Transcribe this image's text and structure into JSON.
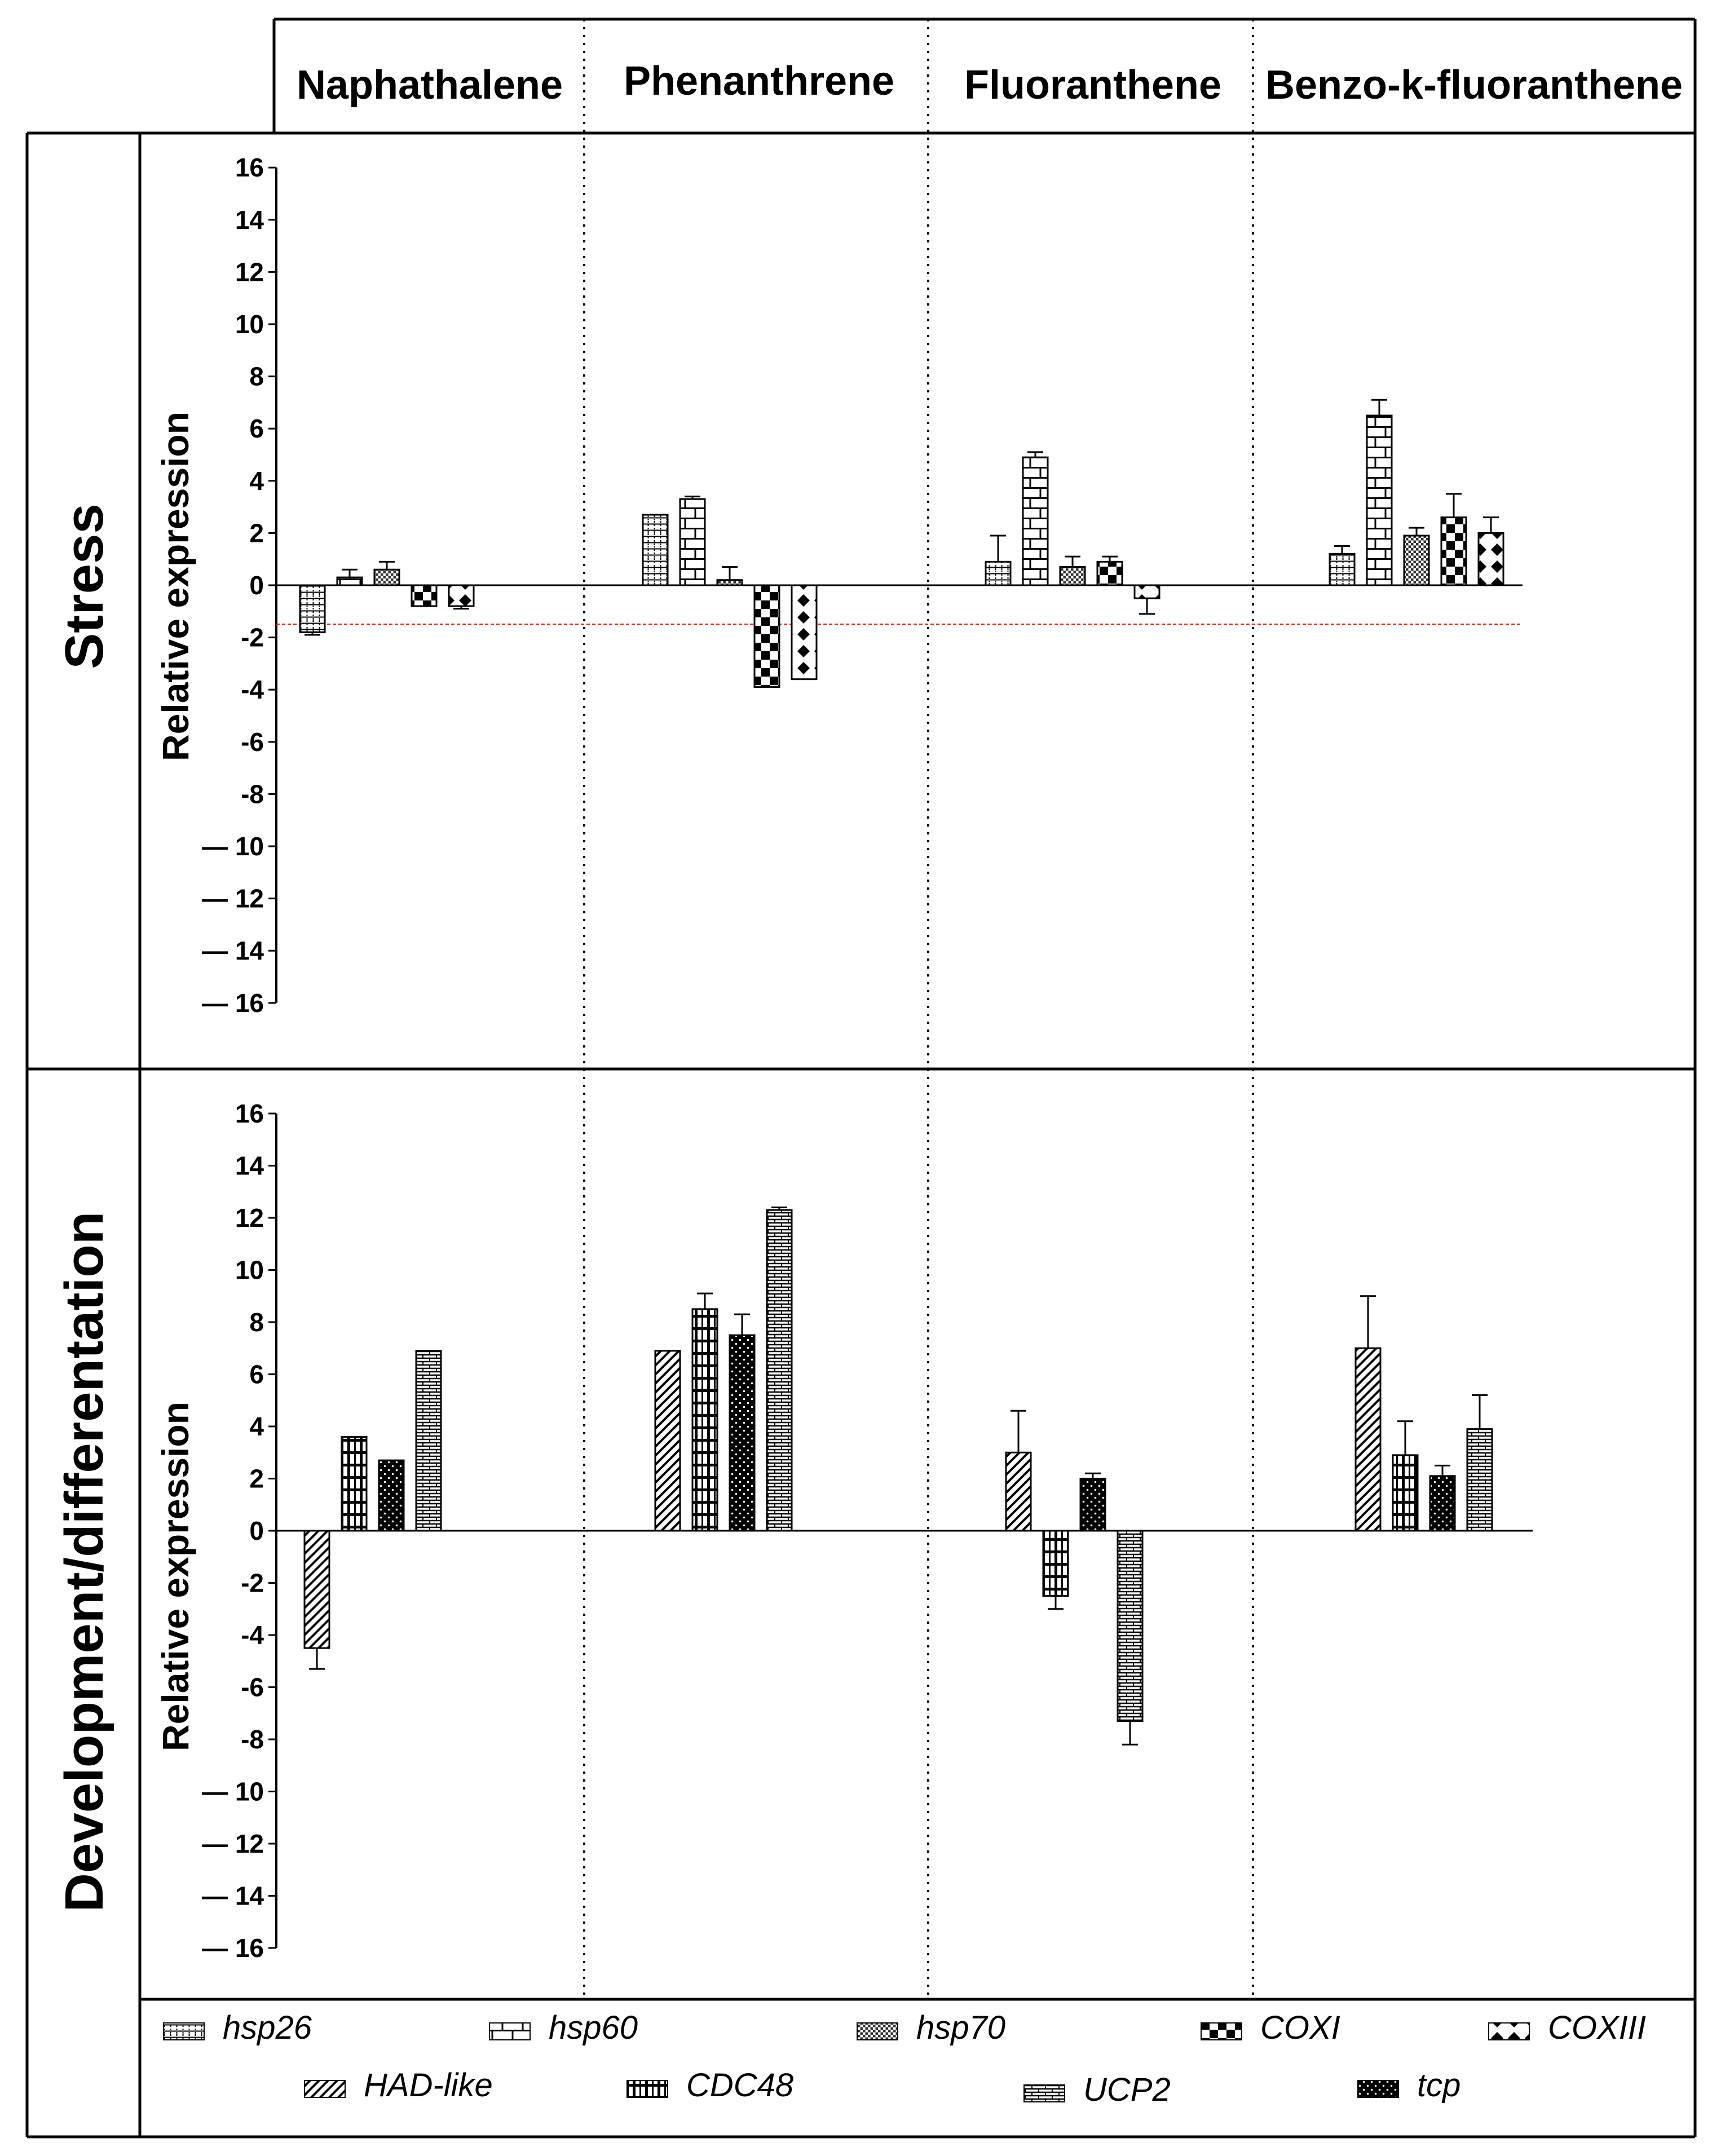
{
  "figure": {
    "header_cols": [
      "Naphathalene",
      "Phenanthrene",
      "Fluoranthene",
      "Benzo-k-fluoranthene"
    ],
    "row_labels": [
      "Stress",
      "Development/differentation"
    ]
  },
  "chart_data": [
    {
      "type": "bar",
      "title": "Stress",
      "ylabel": "Relative expression",
      "ylim": [
        -16,
        16
      ],
      "yticks": [
        "16",
        "14",
        "12",
        "10",
        "8",
        "6",
        "4",
        "2",
        "0",
        "-2",
        "-4",
        "-6",
        "-8",
        "— 10",
        "— 12",
        "— 14",
        "— 16"
      ],
      "threshold": -1.5,
      "categories": [
        "Naphathalene",
        "Phenanthrene",
        "Fluoranthene",
        "Benzo-k-fluoranthene"
      ],
      "series": [
        {
          "name": "hsp26",
          "values": [
            -1.8,
            2.7,
            0.9,
            1.2
          ],
          "errors": [
            0.1,
            0.0,
            1.0,
            0.3
          ]
        },
        {
          "name": "hsp60",
          "values": [
            0.3,
            3.3,
            4.9,
            6.5
          ],
          "errors": [
            0.3,
            0.1,
            0.2,
            0.6
          ]
        },
        {
          "name": "hsp70",
          "values": [
            0.6,
            0.2,
            0.7,
            1.9
          ],
          "errors": [
            0.3,
            0.5,
            0.4,
            0.3
          ]
        },
        {
          "name": "COXI",
          "values": [
            -0.8,
            -3.9,
            0.9,
            2.6
          ],
          "errors": [
            0.0,
            0.0,
            0.2,
            0.9
          ]
        },
        {
          "name": "COXIII",
          "values": [
            -0.8,
            -3.6,
            -0.5,
            2.0
          ],
          "errors": [
            0.1,
            0.0,
            0.6,
            0.6
          ]
        }
      ]
    },
    {
      "type": "bar",
      "title": "Development/differentation",
      "ylabel": "Relative expression",
      "ylim": [
        -16,
        16
      ],
      "yticks": [
        "16",
        "14",
        "12",
        "10",
        "8",
        "6",
        "4",
        "2",
        "0",
        "-2",
        "-4",
        "-6",
        "-8",
        "— 10",
        "— 12",
        "— 14",
        "— 16"
      ],
      "categories": [
        "Naphathalene",
        "Phenanthrene",
        "Fluoranthene",
        "Benzo-k-fluoranthene"
      ],
      "series": [
        {
          "name": "HAD-like",
          "values": [
            -4.5,
            6.9,
            3.0,
            7.0
          ],
          "errors": [
            0.8,
            0.0,
            1.6,
            2.0
          ]
        },
        {
          "name": "CDC48",
          "values": [
            3.6,
            8.5,
            -2.5,
            2.9
          ],
          "errors": [
            0.0,
            0.6,
            0.5,
            1.3
          ]
        },
        {
          "name": "tcp",
          "values": [
            2.7,
            7.5,
            2.0,
            2.1
          ],
          "errors": [
            0.0,
            0.8,
            0.2,
            0.4
          ]
        },
        {
          "name": "UCP2",
          "values": [
            6.9,
            12.3,
            -7.3,
            3.9
          ],
          "errors": [
            0.0,
            0.1,
            0.9,
            1.3
          ]
        }
      ]
    }
  ],
  "legend": {
    "items": [
      "hsp26",
      "hsp60",
      "hsp70",
      "COXI",
      "COXIII",
      "HAD-like",
      "CDC48",
      "UCP2",
      "tcp"
    ]
  },
  "colors": {
    "ink": "#000000",
    "threshold": "#e0301e",
    "background": "#ffffff"
  }
}
